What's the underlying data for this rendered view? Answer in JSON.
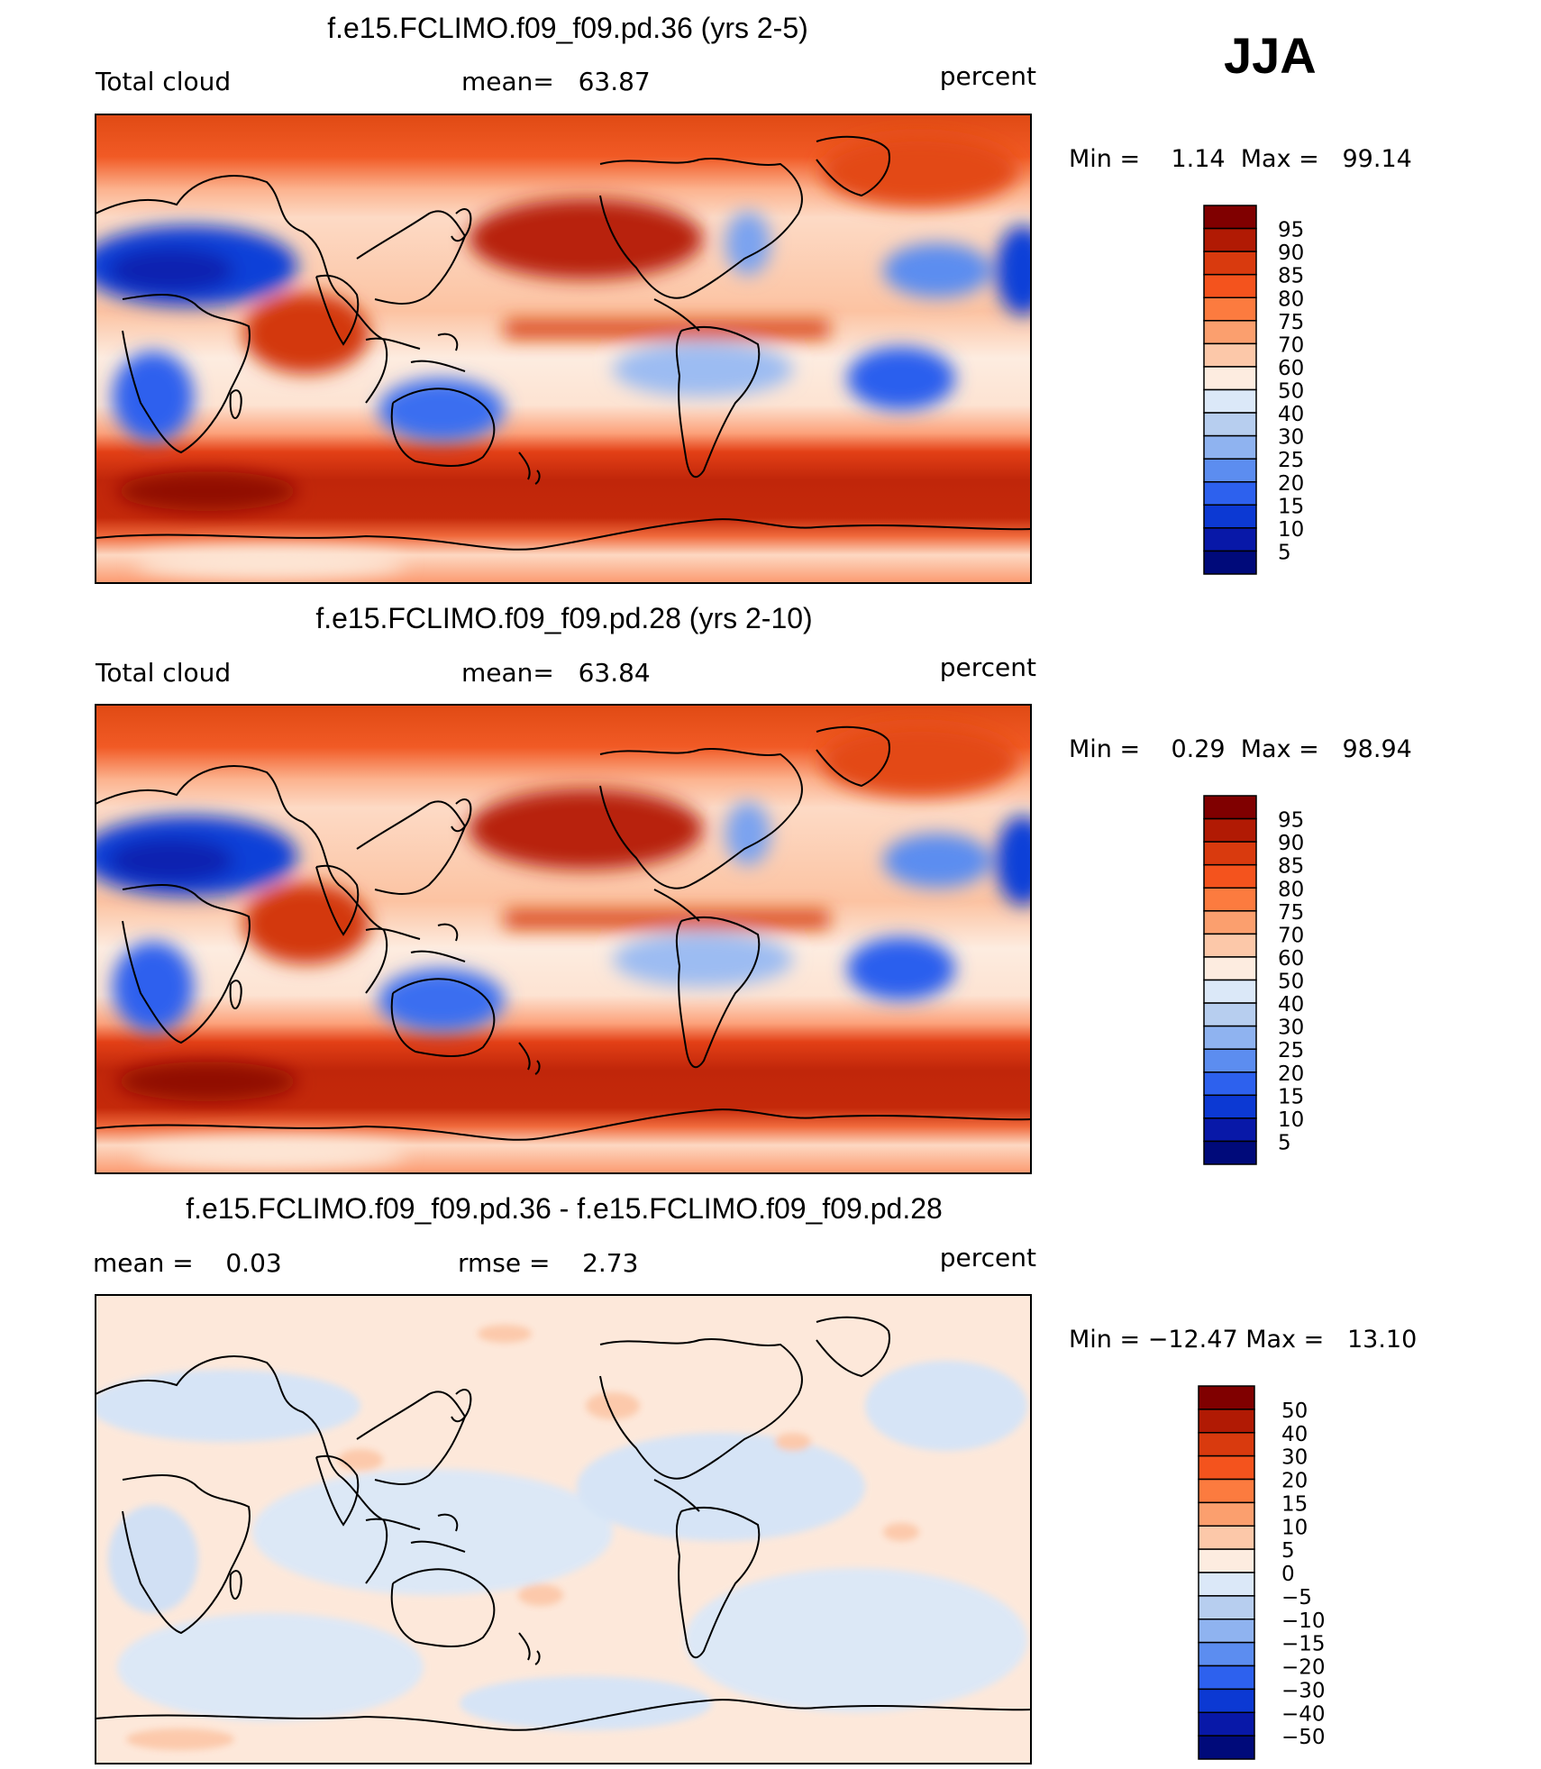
{
  "season": "JJA",
  "chart_data": [
    {
      "type": "heatmap",
      "title": "f.e15.FCLIMO.f09_f09.pd.36 (yrs 2-5)",
      "left_label": "Total cloud",
      "mean_text": "mean=   63.87",
      "units": "percent",
      "min": 1.14,
      "max": 99.14,
      "minmax_text": "Min =    1.14  Max =   99.14",
      "colorbar": {
        "levels": [
          "95",
          "90",
          "85",
          "80",
          "75",
          "70",
          "60",
          "50",
          "40",
          "30",
          "25",
          "20",
          "15",
          "10",
          "5"
        ],
        "colors": [
          "#800000",
          "#b11a04",
          "#d93a0e",
          "#f4531d",
          "#fc7b3f",
          "#fb9f6e",
          "#fcc8a9",
          "#fdece0",
          "#dbe8f8",
          "#b7ceef",
          "#8fb3f0",
          "#5c8df0",
          "#2d61ee",
          "#0c39d3",
          "#0818a8",
          "#000a7a"
        ]
      }
    },
    {
      "type": "heatmap",
      "title": "f.e15.FCLIMO.f09_f09.pd.28 (yrs 2-10)",
      "left_label": "Total cloud",
      "mean_text": "mean=   63.84",
      "units": "percent",
      "min": 0.29,
      "max": 98.94,
      "minmax_text": "Min =    0.29  Max =   98.94",
      "colorbar": {
        "levels": [
          "95",
          "90",
          "85",
          "80",
          "75",
          "70",
          "60",
          "50",
          "40",
          "30",
          "25",
          "20",
          "15",
          "10",
          "5"
        ],
        "colors": [
          "#800000",
          "#b11a04",
          "#d93a0e",
          "#f4531d",
          "#fc7b3f",
          "#fb9f6e",
          "#fcc8a9",
          "#fdece0",
          "#dbe8f8",
          "#b7ceef",
          "#8fb3f0",
          "#5c8df0",
          "#2d61ee",
          "#0c39d3",
          "#0818a8",
          "#000a7a"
        ]
      }
    },
    {
      "type": "heatmap",
      "title": "f.e15.FCLIMO.f09_f09.pd.36 - f.e15.FCLIMO.f09_f09.pd.28",
      "left_label": "mean =    0.03",
      "mean_text": "rmse =    2.73",
      "units": "percent",
      "mean": 0.03,
      "rmse": 2.73,
      "min": -12.47,
      "max": 13.1,
      "minmax_text": "Min = −12.47 Max =   13.10",
      "colorbar": {
        "levels": [
          "50",
          "40",
          "30",
          "20",
          "15",
          "10",
          "5",
          "0",
          "−5",
          "−10",
          "−15",
          "−20",
          "−30",
          "−40",
          "−50"
        ],
        "colors": [
          "#800000",
          "#b11a04",
          "#d93a0e",
          "#f4531d",
          "#fc7b3f",
          "#fb9f6e",
          "#fcc8a9",
          "#fdece0",
          "#dbe8f8",
          "#b7ceef",
          "#8fb3f0",
          "#5c8df0",
          "#2d61ee",
          "#0c39d3",
          "#0818a8",
          "#000a7a"
        ]
      }
    }
  ]
}
